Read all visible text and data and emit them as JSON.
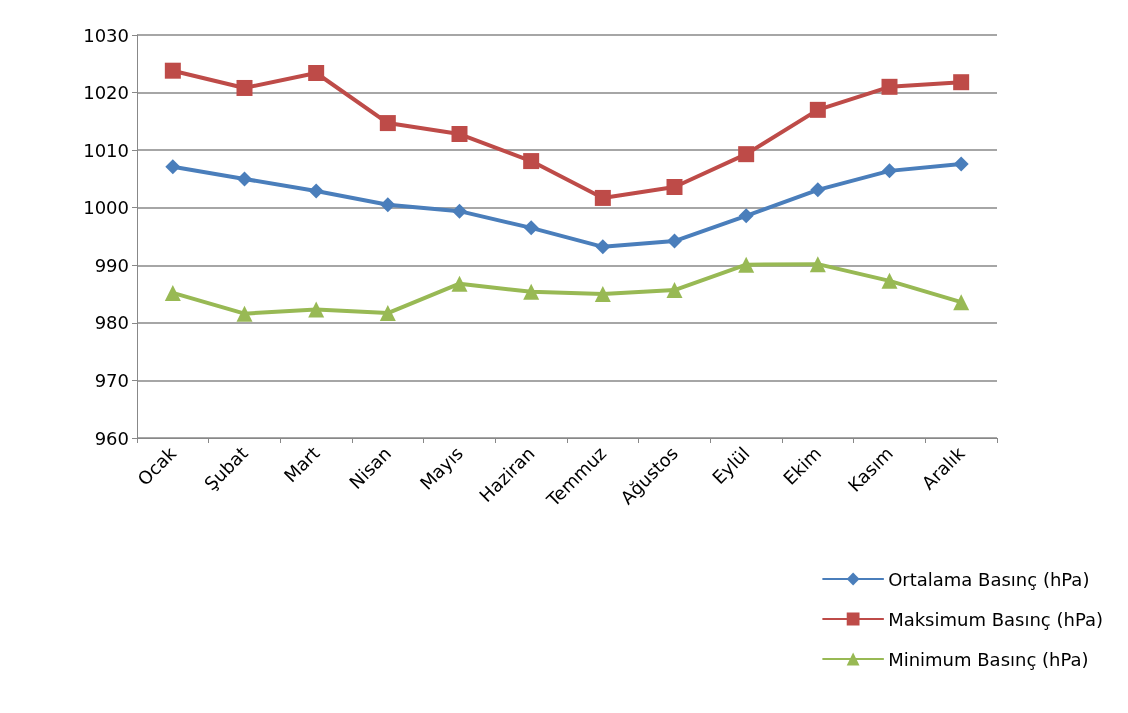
{
  "chart_data": {
    "type": "line",
    "categories": [
      "Ocak",
      "Şubat",
      "Mart",
      "Nisan",
      "Mayıs",
      "Haziran",
      "Temmuz",
      "Ağustos",
      "Eylül",
      "Ekim",
      "Kasım",
      "Aralık"
    ],
    "series": [
      {
        "name": "Ortalama Basınç (hPa)",
        "color": "#4a7ebb",
        "marker": "diamond",
        "values": [
          1007.1,
          1005.0,
          1002.9,
          1000.5,
          999.4,
          996.5,
          993.2,
          994.2,
          998.6,
          1003.1,
          1006.4,
          1007.6
        ]
      },
      {
        "name": "Maksimum Basınç (hPa)",
        "color": "#be4b48",
        "marker": "square",
        "values": [
          1023.8,
          1020.8,
          1023.4,
          1014.7,
          1012.8,
          1008.1,
          1001.7,
          1003.6,
          1009.3,
          1017.0,
          1021.0,
          1021.8
        ]
      },
      {
        "name": "Minimum Basınç (hPa)",
        "color": "#98b954",
        "marker": "triangle",
        "values": [
          985.2,
          981.6,
          982.3,
          981.7,
          986.8,
          985.4,
          985.0,
          985.7,
          990.1,
          990.2,
          987.3,
          983.6
        ]
      }
    ],
    "ylim": [
      960,
      1030
    ],
    "yticks": [
      960,
      970,
      980,
      990,
      1000,
      1010,
      1020,
      1030
    ],
    "grid": "y",
    "legend": "bottom right",
    "line_style": "solid"
  }
}
